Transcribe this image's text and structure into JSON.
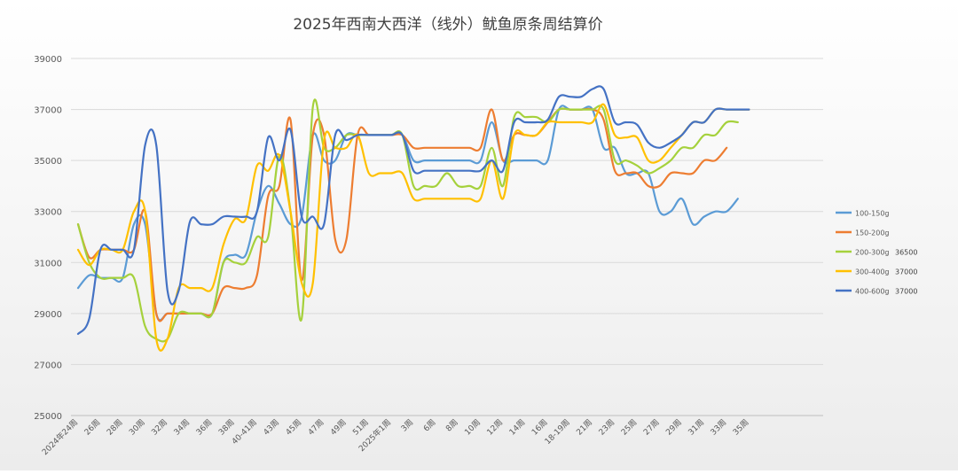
{
  "chart_data": {
    "type": "line",
    "title": "2025年西南大西洋（线外）鱿鱼原条周结算价",
    "xlabel": "",
    "ylabel": "",
    "ylim": [
      25000,
      39000
    ],
    "yticks": [
      25000,
      27000,
      29000,
      31000,
      33000,
      35000,
      37000,
      39000
    ],
    "ytick_labels": [
      "25000",
      "27000",
      "29000",
      "31000",
      "33000",
      "35000",
      "37000",
      "39000"
    ],
    "grid": true,
    "legend_position": "right",
    "x_count": 67,
    "xtick_labels": [
      {
        "i": 0,
        "label": "2024年24周"
      },
      {
        "i": 2,
        "label": "26周"
      },
      {
        "i": 4,
        "label": "28周"
      },
      {
        "i": 6,
        "label": "30周"
      },
      {
        "i": 8,
        "label": "32周"
      },
      {
        "i": 10,
        "label": "34周"
      },
      {
        "i": 12,
        "label": "36周"
      },
      {
        "i": 14,
        "label": "38周"
      },
      {
        "i": 16,
        "label": "40-41周"
      },
      {
        "i": 18,
        "label": "43周"
      },
      {
        "i": 20,
        "label": "45周"
      },
      {
        "i": 22,
        "label": "47周"
      },
      {
        "i": 24,
        "label": "49周"
      },
      {
        "i": 26,
        "label": "51周"
      },
      {
        "i": 28,
        "label": "2025年1周"
      },
      {
        "i": 30,
        "label": "3周"
      },
      {
        "i": 32,
        "label": "6周"
      },
      {
        "i": 34,
        "label": "8周"
      },
      {
        "i": 36,
        "label": "10周"
      },
      {
        "i": 38,
        "label": "12周"
      },
      {
        "i": 40,
        "label": "14周"
      },
      {
        "i": 42,
        "label": "16周"
      },
      {
        "i": 44,
        "label": "18-19周"
      },
      {
        "i": 46,
        "label": "21周"
      },
      {
        "i": 48,
        "label": "23周"
      },
      {
        "i": 50,
        "label": "25周"
      },
      {
        "i": 52,
        "label": "27周"
      },
      {
        "i": 54,
        "label": "29周"
      },
      {
        "i": 56,
        "label": "31周"
      },
      {
        "i": 58,
        "label": "33周"
      },
      {
        "i": 60,
        "label": "35周"
      }
    ],
    "series": [
      {
        "name": "100-150g",
        "color": "#5B9BD5",
        "end_label": "",
        "values": [
          30000,
          30500,
          30400,
          30400,
          30400,
          32500,
          32500,
          29000,
          29000,
          29000,
          29000,
          29000,
          29000,
          31000,
          31300,
          31300,
          33000,
          34000,
          33300,
          32500,
          32800,
          36000,
          35000,
          35000,
          36000,
          36000,
          36000,
          36000,
          36000,
          36000,
          35000,
          35000,
          35000,
          35000,
          35000,
          35000,
          35000,
          36500,
          35000,
          35000,
          35000,
          35000,
          35000,
          37000,
          37000,
          37000,
          37000,
          35500,
          35500,
          34500,
          34500,
          34500,
          33000,
          33000,
          33500,
          32500,
          32800,
          33000,
          33000,
          33500
        ]
      },
      {
        "name": "150-200g",
        "color": "#ED7D31",
        "end_label": "",
        "values": [
          32500,
          31200,
          31500,
          31500,
          31500,
          31500,
          33000,
          29000,
          29000,
          29000,
          29000,
          29000,
          29000,
          30000,
          30000,
          30000,
          30500,
          33600,
          34000,
          36600,
          30300,
          36000,
          36000,
          31900,
          31900,
          36000,
          36000,
          36000,
          36000,
          36000,
          35500,
          35500,
          35500,
          35500,
          35500,
          35500,
          35500,
          37000,
          35000,
          36000,
          36000,
          36000,
          36500,
          37000,
          37000,
          37000,
          37000,
          36600,
          34600,
          34500,
          34500,
          34000,
          34000,
          34500,
          34500,
          34500,
          35000,
          35000,
          35500
        ]
      },
      {
        "name": "200-300g",
        "color": "#A5D13C",
        "end_label": "36500",
        "values": [
          32500,
          31000,
          30400,
          30400,
          30400,
          30400,
          28500,
          28000,
          28000,
          29000,
          29000,
          29000,
          29000,
          31000,
          31000,
          31000,
          32000,
          32000,
          35200,
          33000,
          28800,
          37100,
          35500,
          35500,
          36000,
          36000,
          36000,
          36000,
          36000,
          36000,
          34000,
          34000,
          34000,
          34500,
          34000,
          34000,
          34000,
          35500,
          34000,
          36700,
          36700,
          36700,
          36500,
          37000,
          37000,
          37000,
          37000,
          37000,
          35000,
          35000,
          34800,
          34500,
          34700,
          35000,
          35500,
          35500,
          36000,
          36000,
          36500,
          36500
        ]
      },
      {
        "name": "300-400g",
        "color": "#FFC000",
        "end_label": "37000",
        "values": [
          31500,
          30900,
          31500,
          31500,
          31500,
          33000,
          33000,
          28000,
          28000,
          30000,
          30000,
          30000,
          30000,
          31700,
          32700,
          32700,
          34800,
          34600,
          35200,
          33000,
          30200,
          30200,
          35800,
          35500,
          35500,
          36000,
          34500,
          34500,
          34500,
          34500,
          33500,
          33500,
          33500,
          33500,
          33500,
          33500,
          33500,
          35000,
          33500,
          36000,
          36000,
          36000,
          36500,
          36500,
          36500,
          36500,
          36500,
          37200,
          36000,
          35900,
          35900,
          35000,
          35000,
          35500,
          36000,
          36500,
          36500,
          37000,
          37000,
          37000,
          37000
        ]
      },
      {
        "name": "400-600g",
        "color": "#4472C4",
        "end_label": "37000",
        "values": [
          28200,
          28800,
          31500,
          31500,
          31500,
          31500,
          35600,
          35600,
          29900,
          29900,
          32600,
          32500,
          32500,
          32800,
          32800,
          32800,
          33000,
          35900,
          35000,
          36200,
          32800,
          32800,
          32500,
          36000,
          35800,
          36000,
          36000,
          36000,
          36000,
          36000,
          34600,
          34600,
          34600,
          34600,
          34600,
          34600,
          34600,
          35000,
          34600,
          36500,
          36500,
          36500,
          36600,
          37500,
          37500,
          37500,
          37800,
          37800,
          36500,
          36500,
          36400,
          35700,
          35500,
          35700,
          36000,
          36500,
          36500,
          37000,
          37000,
          37000,
          37000
        ]
      }
    ]
  }
}
